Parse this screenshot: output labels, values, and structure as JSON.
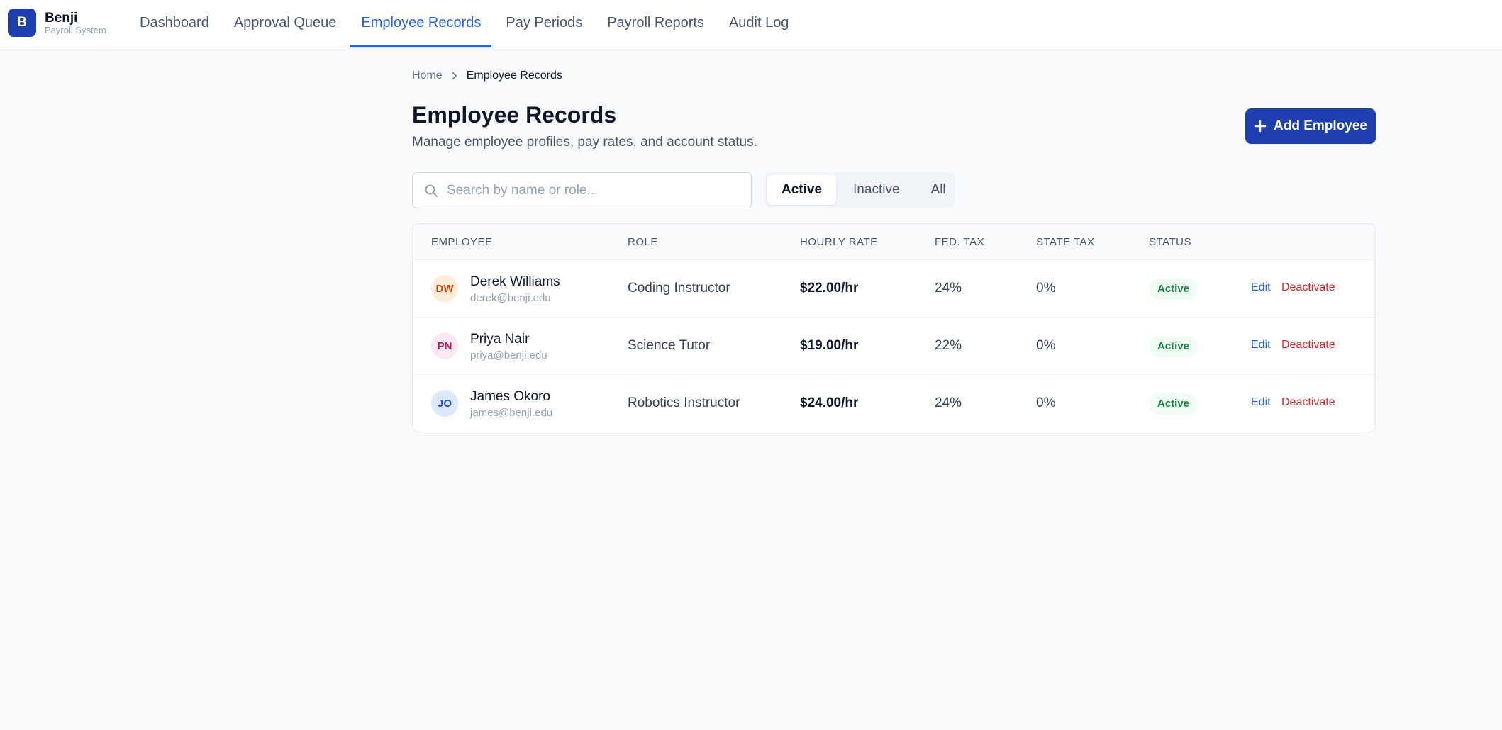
{
  "header": {
    "logo": "B",
    "brand": "Benji",
    "subtitle": "Payroll System",
    "nav": [
      {
        "label": "Dashboard",
        "active": false
      },
      {
        "label": "Approval Queue",
        "active": false
      },
      {
        "label": "Employee Records",
        "active": true
      },
      {
        "label": "Pay Periods",
        "active": false
      },
      {
        "label": "Payroll Reports",
        "active": false
      },
      {
        "label": "Audit Log",
        "active": false
      }
    ]
  },
  "breadcrumb": [
    "Home",
    "Employee Records"
  ],
  "page": {
    "title": "Employee Records",
    "subtitle": "Manage employee profiles, pay rates, and account status.",
    "add_button": "Add Employee"
  },
  "search": {
    "placeholder": "Search by name or role..."
  },
  "tabs": [
    {
      "label": "Active",
      "active": true
    },
    {
      "label": "Inactive",
      "active": false
    },
    {
      "label": "All",
      "active": false
    }
  ],
  "table": {
    "columns": [
      "EMPLOYEE",
      "ROLE",
      "HOURLY RATE",
      "FED. TAX",
      "STATE TAX",
      "STATUS"
    ],
    "rows": [
      {
        "initials": "DW",
        "name": "Derek Williams",
        "email": "derek@benji.edu",
        "role": "Coding Instructor",
        "rate": "$22.00/hr",
        "fed_tax": "24%",
        "state_tax": "0%",
        "status": "Active",
        "actions": [
          "Edit",
          "Deactivate"
        ]
      },
      {
        "initials": "PN",
        "name": "Priya Nair",
        "email": "priya@benji.edu",
        "role": "Science Tutor",
        "rate": "$19.00/hr",
        "fed_tax": "22%",
        "state_tax": "0%",
        "status": "Active",
        "actions": [
          "Edit",
          "Deactivate"
        ]
      },
      {
        "initials": "JO",
        "name": "James Okoro",
        "email": "james@benji.edu",
        "role": "Robotics Instructor",
        "rate": "$24.00/hr",
        "fed_tax": "24%",
        "state_tax": "0%",
        "status": "Active",
        "actions": [
          "Edit",
          "Deactivate"
        ]
      }
    ]
  }
}
